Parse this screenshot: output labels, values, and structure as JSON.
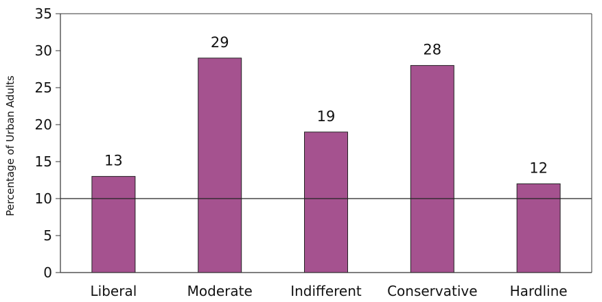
{
  "chart_data": {
    "type": "bar",
    "categories": [
      "Liberal",
      "Moderate",
      "Indifferent",
      "Conservative",
      "Hardline"
    ],
    "values": [
      13,
      29,
      19,
      28,
      12
    ],
    "data_labels": [
      "13",
      "29",
      "19",
      "28",
      "12"
    ],
    "ylabel": "Percentage of Urban Adults",
    "ylim": [
      0,
      35
    ],
    "yticks": [
      0,
      5,
      10,
      15,
      20,
      25,
      30,
      35
    ],
    "ytick_labels": [
      "0",
      "5",
      "10",
      "15",
      "20",
      "25",
      "30",
      "35"
    ],
    "reference_line": 10,
    "grid": false,
    "legend": "none",
    "bar_color": "#a5528f",
    "bar_edge_color": "#222222"
  }
}
